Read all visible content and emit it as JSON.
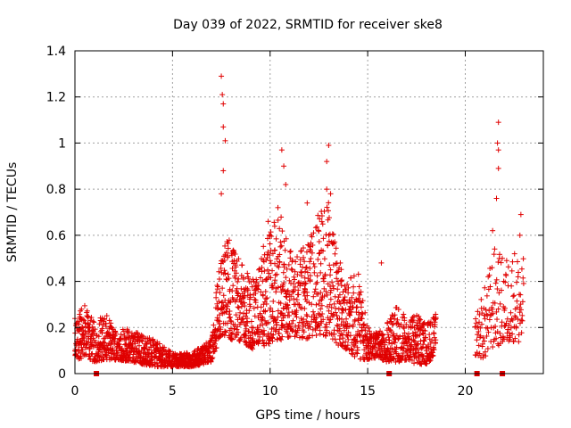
{
  "chart_data": {
    "type": "scatter",
    "title": "Day 039 of 2022, SRMTID for receiver ske8",
    "xlabel": "GPS time / hours",
    "ylabel": "SRMTID / TECUs",
    "xlim": [
      0,
      24
    ],
    "ylim": [
      0,
      1.4
    ],
    "xticks": [
      "0",
      "5",
      "10",
      "15",
      "20"
    ],
    "yticks": [
      "0",
      "0.2",
      "0.4",
      "0.6",
      "0.8",
      "1",
      "1.2",
      "1.4"
    ],
    "grid": true,
    "marker": "+",
    "color": "#e00000",
    "gap_markers_x": [
      1.1,
      16.1,
      20.6,
      21.9
    ],
    "series": [
      {
        "name": "SRMTID",
        "envelope_hours": [
          0,
          0.5,
          1,
          1.5,
          2,
          3,
          4,
          5,
          6,
          7,
          7.4,
          7.8,
          8.5,
          9.2,
          9.8,
          10.5,
          11.2,
          12,
          12.5,
          13,
          13.5,
          14,
          14.5,
          15,
          15.5,
          16,
          16.5,
          17,
          17.5,
          18,
          18.5
        ],
        "envelope_lower": [
          0.06,
          0.07,
          0.05,
          0.06,
          0.06,
          0.05,
          0.03,
          0.03,
          0.03,
          0.05,
          0.15,
          0.15,
          0.14,
          0.1,
          0.12,
          0.14,
          0.16,
          0.15,
          0.17,
          0.16,
          0.12,
          0.1,
          0.06,
          0.06,
          0.07,
          0.05,
          0.05,
          0.06,
          0.04,
          0.04,
          0.08
        ],
        "envelope_upper": [
          0.24,
          0.3,
          0.22,
          0.27,
          0.2,
          0.19,
          0.15,
          0.09,
          0.09,
          0.15,
          0.5,
          0.6,
          0.49,
          0.4,
          0.6,
          0.7,
          0.5,
          0.58,
          0.7,
          0.78,
          0.5,
          0.4,
          0.46,
          0.2,
          0.18,
          0.22,
          0.3,
          0.24,
          0.26,
          0.22,
          0.26
        ],
        "envelope_hours_b": [
          20.5,
          21,
          21.5,
          22,
          22.5,
          23
        ],
        "envelope_lower_b": [
          0.08,
          0.06,
          0.12,
          0.12,
          0.14,
          0.1
        ],
        "envelope_upper_b": [
          0.25,
          0.38,
          0.55,
          0.5,
          0.55,
          0.5
        ],
        "peaks": [
          {
            "x": 7.5,
            "y": 1.29
          },
          {
            "x": 7.55,
            "y": 1.21
          },
          {
            "x": 7.6,
            "y": 1.17
          },
          {
            "x": 7.6,
            "y": 1.07
          },
          {
            "x": 7.7,
            "y": 1.01
          },
          {
            "x": 7.6,
            "y": 0.88
          },
          {
            "x": 7.5,
            "y": 0.78
          },
          {
            "x": 10.6,
            "y": 0.97
          },
          {
            "x": 10.7,
            "y": 0.9
          },
          {
            "x": 10.8,
            "y": 0.82
          },
          {
            "x": 10.4,
            "y": 0.72
          },
          {
            "x": 9.9,
            "y": 0.66
          },
          {
            "x": 11.9,
            "y": 0.74
          },
          {
            "x": 13.0,
            "y": 0.99
          },
          {
            "x": 12.9,
            "y": 0.92
          },
          {
            "x": 12.9,
            "y": 0.8
          },
          {
            "x": 13.1,
            "y": 0.78
          },
          {
            "x": 15.7,
            "y": 0.48
          },
          {
            "x": 21.7,
            "y": 1.09
          },
          {
            "x": 21.65,
            "y": 1.0
          },
          {
            "x": 21.7,
            "y": 0.97
          },
          {
            "x": 21.7,
            "y": 0.89
          },
          {
            "x": 21.6,
            "y": 0.76
          },
          {
            "x": 22.85,
            "y": 0.69
          },
          {
            "x": 22.8,
            "y": 0.6
          },
          {
            "x": 21.4,
            "y": 0.62
          }
        ]
      }
    ]
  }
}
